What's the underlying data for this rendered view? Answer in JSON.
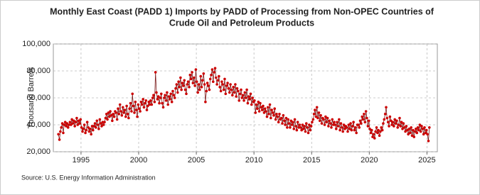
{
  "chart_data": {
    "type": "line",
    "title": [
      "Monthly East Coast (PADD 1) Imports by PADD of Processing from Non-OPEC Countries of",
      "Crude Oil and Petroleum Products"
    ],
    "y_label": "Thousand Barrels",
    "source": "Source: U.S. Energy Information Administration",
    "xlim": [
      1992.6,
      2025.9
    ],
    "xticks": [
      1995,
      2000,
      2005,
      2010,
      2015,
      2020,
      2025
    ],
    "ylim": [
      20000,
      100000
    ],
    "yticks": [
      {
        "value": 20000,
        "label": "20,000"
      },
      {
        "value": 40000,
        "label": "40,000"
      },
      {
        "value": 60000,
        "label": "60,000"
      },
      {
        "value": 80000,
        "label": "80,000"
      },
      {
        "value": 100000,
        "label": "100,000"
      }
    ],
    "grid": true,
    "series": [
      {
        "color": "#cc0000",
        "line_color": "#7a1a1a",
        "x": [
          1993.04,
          1993.13,
          1993.21,
          1993.29,
          1993.38,
          1993.46,
          1993.54,
          1993.63,
          1993.71,
          1993.79,
          1993.88,
          1993.96,
          1994.04,
          1994.13,
          1994.21,
          1994.29,
          1994.38,
          1994.46,
          1994.54,
          1994.63,
          1994.71,
          1994.79,
          1994.88,
          1994.96,
          1995.04,
          1995.13,
          1995.21,
          1995.29,
          1995.38,
          1995.46,
          1995.54,
          1995.63,
          1995.71,
          1995.79,
          1995.88,
          1995.96,
          1996.04,
          1996.13,
          1996.21,
          1996.29,
          1996.38,
          1996.46,
          1996.54,
          1996.63,
          1996.71,
          1996.79,
          1996.88,
          1996.96,
          1997.04,
          1997.13,
          1997.21,
          1997.29,
          1997.38,
          1997.46,
          1997.54,
          1997.63,
          1997.71,
          1997.79,
          1997.88,
          1997.96,
          1998.04,
          1998.13,
          1998.21,
          1998.29,
          1998.38,
          1998.46,
          1998.54,
          1998.63,
          1998.71,
          1998.79,
          1998.88,
          1998.96,
          1999.04,
          1999.13,
          1999.21,
          1999.29,
          1999.38,
          1999.46,
          1999.54,
          1999.63,
          1999.71,
          1999.79,
          1999.88,
          1999.96,
          2000.04,
          2000.13,
          2000.21,
          2000.29,
          2000.38,
          2000.46,
          2000.54,
          2000.63,
          2000.71,
          2000.79,
          2000.88,
          2000.96,
          2001.04,
          2001.13,
          2001.21,
          2001.29,
          2001.38,
          2001.46,
          2001.54,
          2001.63,
          2001.71,
          2001.79,
          2001.88,
          2001.96,
          2002.04,
          2002.13,
          2002.21,
          2002.29,
          2002.38,
          2002.46,
          2002.54,
          2002.63,
          2002.71,
          2002.79,
          2002.88,
          2002.96,
          2003.04,
          2003.13,
          2003.21,
          2003.29,
          2003.38,
          2003.46,
          2003.54,
          2003.63,
          2003.71,
          2003.79,
          2003.88,
          2003.96,
          2004.04,
          2004.13,
          2004.21,
          2004.29,
          2004.38,
          2004.46,
          2004.54,
          2004.63,
          2004.71,
          2004.79,
          2004.88,
          2004.96,
          2005.04,
          2005.13,
          2005.21,
          2005.29,
          2005.38,
          2005.46,
          2005.54,
          2005.63,
          2005.71,
          2005.79,
          2005.88,
          2005.96,
          2006.04,
          2006.13,
          2006.21,
          2006.29,
          2006.38,
          2006.46,
          2006.54,
          2006.63,
          2006.71,
          2006.79,
          2006.88,
          2006.96,
          2007.04,
          2007.13,
          2007.21,
          2007.29,
          2007.38,
          2007.46,
          2007.54,
          2007.63,
          2007.71,
          2007.79,
          2007.88,
          2007.96,
          2008.04,
          2008.13,
          2008.21,
          2008.29,
          2008.38,
          2008.46,
          2008.54,
          2008.63,
          2008.71,
          2008.79,
          2008.88,
          2008.96,
          2009.04,
          2009.13,
          2009.21,
          2009.29,
          2009.38,
          2009.46,
          2009.54,
          2009.63,
          2009.71,
          2009.79,
          2009.88,
          2009.96,
          2010.04,
          2010.13,
          2010.21,
          2010.29,
          2010.38,
          2010.46,
          2010.54,
          2010.63,
          2010.71,
          2010.79,
          2010.88,
          2010.96,
          2011.04,
          2011.13,
          2011.21,
          2011.29,
          2011.38,
          2011.46,
          2011.54,
          2011.63,
          2011.71,
          2011.79,
          2011.88,
          2011.96,
          2012.04,
          2012.13,
          2012.21,
          2012.29,
          2012.38,
          2012.46,
          2012.54,
          2012.63,
          2012.71,
          2012.79,
          2012.88,
          2012.96,
          2013.04,
          2013.13,
          2013.21,
          2013.29,
          2013.38,
          2013.46,
          2013.54,
          2013.63,
          2013.71,
          2013.79,
          2013.88,
          2013.96,
          2014.04,
          2014.13,
          2014.21,
          2014.29,
          2014.38,
          2014.46,
          2014.54,
          2014.63,
          2014.71,
          2014.79,
          2014.88,
          2014.96,
          2015.04,
          2015.13,
          2015.21,
          2015.29,
          2015.38,
          2015.46,
          2015.54,
          2015.63,
          2015.71,
          2015.79,
          2015.88,
          2015.96,
          2016.04,
          2016.13,
          2016.21,
          2016.29,
          2016.38,
          2016.46,
          2016.54,
          2016.63,
          2016.71,
          2016.79,
          2016.88,
          2016.96,
          2017.04,
          2017.13,
          2017.21,
          2017.29,
          2017.38,
          2017.46,
          2017.54,
          2017.63,
          2017.71,
          2017.79,
          2017.88,
          2017.96,
          2018.04,
          2018.13,
          2018.21,
          2018.29,
          2018.38,
          2018.46,
          2018.54,
          2018.63,
          2018.71,
          2018.79,
          2018.88,
          2018.96,
          2019.04,
          2019.13,
          2019.21,
          2019.29,
          2019.38,
          2019.46,
          2019.54,
          2019.63,
          2019.71,
          2019.79,
          2019.88,
          2019.96,
          2020.04,
          2020.13,
          2020.21,
          2020.29,
          2020.38,
          2020.46,
          2020.54,
          2020.63,
          2020.71,
          2020.79,
          2020.88,
          2020.96,
          2021.04,
          2021.13,
          2021.21,
          2021.29,
          2021.38,
          2021.46,
          2021.54,
          2021.63,
          2021.71,
          2021.79,
          2021.88,
          2021.96,
          2022.04,
          2022.13,
          2022.21,
          2022.29,
          2022.38,
          2022.46,
          2022.54,
          2022.63,
          2022.71,
          2022.79,
          2022.88,
          2022.96,
          2023.04,
          2023.13,
          2023.21,
          2023.29,
          2023.38,
          2023.46,
          2023.54,
          2023.63,
          2023.71,
          2023.79,
          2023.88,
          2023.96,
          2024.04,
          2024.13,
          2024.21,
          2024.29,
          2024.38,
          2024.46,
          2024.54,
          2024.63,
          2024.71,
          2024.79,
          2024.88,
          2024.96,
          2025.04,
          2025.13,
          2025.21
        ],
        "values": [
          33000,
          29000,
          35000,
          38000,
          41000,
          34000,
          40000,
          42000,
          39000,
          41000,
          38000,
          40000,
          42000,
          40000,
          44000,
          41000,
          43000,
          39000,
          42000,
          45000,
          40000,
          43000,
          41000,
          44000,
          38000,
          35000,
          37000,
          40000,
          34000,
          36000,
          42000,
          38000,
          35000,
          37000,
          33000,
          39000,
          36000,
          39000,
          41000,
          38000,
          43000,
          40000,
          37000,
          44000,
          41000,
          39000,
          42000,
          40000,
          42000,
          45000,
          48000,
          44000,
          49000,
          46000,
          50000,
          47000,
          43000,
          48000,
          46000,
          50000,
          49000,
          44000,
          52000,
          48000,
          55000,
          50000,
          47000,
          53000,
          49000,
          51000,
          46000,
          54000,
          48000,
          45000,
          52000,
          56000,
          50000,
          63000,
          54000,
          49000,
          57000,
          51000,
          46000,
          55000,
          52000,
          50000,
          57000,
          55000,
          59000,
          53000,
          56000,
          58000,
          51000,
          54000,
          57000,
          55000,
          58000,
          55000,
          60000,
          62000,
          57000,
          79000,
          64000,
          59000,
          61000,
          56000,
          60000,
          63000,
          56000,
          53000,
          60000,
          62000,
          58000,
          64000,
          55000,
          61000,
          59000,
          63000,
          57000,
          65000,
          62000,
          60000,
          67000,
          70000,
          64000,
          72000,
          68000,
          75000,
          66000,
          71000,
          69000,
          73000,
          66000,
          63000,
          70000,
          72000,
          68000,
          77000,
          74000,
          79000,
          71000,
          75000,
          69000,
          81000,
          72000,
          64000,
          70000,
          66000,
          76000,
          68000,
          73000,
          78000,
          70000,
          57000,
          65000,
          71000,
          69000,
          66000,
          74000,
          77000,
          81000,
          72000,
          79000,
          82000,
          75000,
          70000,
          73000,
          76000,
          68000,
          65000,
          72000,
          70000,
          66000,
          74000,
          63000,
          69000,
          71000,
          67000,
          64000,
          70000,
          66000,
          62000,
          68000,
          64000,
          70000,
          61000,
          67000,
          65000,
          58000,
          63000,
          66000,
          60000,
          62000,
          58000,
          64000,
          60000,
          66000,
          56000,
          61000,
          59000,
          63000,
          55000,
          60000,
          57000,
          58000,
          49000,
          55000,
          52000,
          57000,
          50000,
          56000,
          53000,
          51000,
          54000,
          49000,
          52000,
          50000,
          46000,
          53000,
          48000,
          55000,
          45000,
          51000,
          49000,
          47000,
          52000,
          44000,
          48000,
          46000,
          42000,
          48000,
          44000,
          45000,
          41000,
          47000,
          43000,
          40000,
          45000,
          38000,
          44000,
          41000,
          38000,
          43000,
          40000,
          42000,
          37000,
          44000,
          39000,
          36000,
          42000,
          38000,
          40000,
          38000,
          36000,
          40000,
          37000,
          39000,
          35000,
          41000,
          38000,
          34000,
          40000,
          36000,
          39000,
          42000,
          44000,
          48000,
          51000,
          46000,
          53000,
          45000,
          49000,
          43000,
          47000,
          41000,
          45000,
          44000,
          40000,
          46000,
          42000,
          45000,
          39000,
          43000,
          41000,
          38000,
          44000,
          40000,
          42000,
          40000,
          37000,
          42000,
          39000,
          44000,
          36000,
          41000,
          38000,
          35000,
          40000,
          37000,
          39000,
          38000,
          35000,
          40000,
          37000,
          41000,
          36000,
          39000,
          42000,
          36000,
          38000,
          34000,
          40000,
          40000,
          38000,
          43000,
          41000,
          46000,
          44000,
          48000,
          42000,
          50000,
          45000,
          39000,
          43000,
          37000,
          34000,
          36000,
          31000,
          33000,
          30000,
          35000,
          38000,
          34000,
          36000,
          32000,
          35000,
          38000,
          36000,
          41000,
          44000,
          48000,
          53000,
          45000,
          42000,
          39000,
          46000,
          43000,
          40000,
          42000,
          39000,
          44000,
          41000,
          43000,
          38000,
          40000,
          45000,
          39000,
          42000,
          37000,
          41000,
          38000,
          35000,
          39000,
          36000,
          33000,
          37000,
          34000,
          38000,
          32000,
          36000,
          31000,
          35000,
          37000,
          34000,
          38000,
          36000,
          40000,
          35000,
          39000,
          37000,
          33000,
          38000,
          34000,
          36000,
          33000,
          28000,
          38000
        ]
      }
    ]
  }
}
